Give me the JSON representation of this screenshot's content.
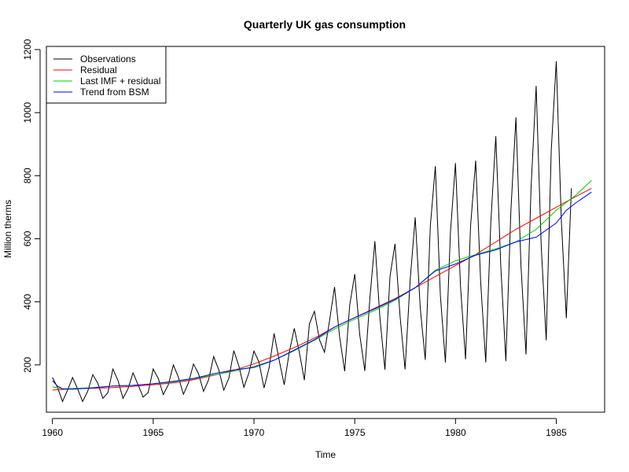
{
  "chart_data": {
    "type": "line",
    "title": "Quarterly UK gas consumption",
    "xlabel": "Time",
    "ylabel": "Million therms",
    "xlim": [
      1959.7,
      1987.4
    ],
    "ylim": [
      50,
      1210
    ],
    "x_ticks": [
      1960,
      1965,
      1970,
      1975,
      1980,
      1985
    ],
    "y_ticks": [
      200,
      400,
      600,
      800,
      1000,
      1200
    ],
    "grid": false,
    "legend_position": "top-left",
    "series": [
      {
        "name": "Observations",
        "color": "#000000",
        "x_start": 1960,
        "x_step": 0.25,
        "values": [
          160,
          129,
          84,
          120,
          160,
          124,
          84,
          116,
          169,
          142,
          94,
          112,
          187,
          151,
          94,
          124,
          175,
          137,
          98,
          112,
          187,
          157,
          106,
          137,
          200,
          161,
          107,
          143,
          203,
          172,
          116,
          153,
          226,
          185,
          120,
          157,
          245,
          197,
          129,
          175,
          244,
          209,
          127,
          190,
          300,
          216,
          137,
          240,
          316,
          240,
          152,
          330,
          370,
          280,
          240,
          340,
          447,
          290,
          180,
          390,
          488,
          295,
          181,
          410,
          592,
          350,
          185,
          480,
          584,
          355,
          186,
          470,
          668,
          380,
          216,
          640,
          830,
          420,
          208,
          620,
          840,
          450,
          218,
          640,
          848,
          460,
          208,
          650,
          925,
          510,
          212,
          690,
          985,
          515,
          233,
          760,
          1085,
          580,
          278,
          880,
          1163,
          660,
          348,
          760
        ]
      },
      {
        "name": "Residual",
        "color": "#ff0000",
        "x": [
          1960,
          1961,
          1962,
          1963,
          1964,
          1965,
          1966,
          1967,
          1968,
          1969,
          1970,
          1971,
          1972,
          1973,
          1974,
          1975,
          1976,
          1977,
          1978,
          1979,
          1980,
          1981,
          1982,
          1983,
          1984,
          1985,
          1986,
          1986.75
        ],
        "values": [
          120,
          124,
          126,
          128,
          132,
          137,
          143,
          153,
          167,
          183,
          203,
          228,
          255,
          285,
          320,
          350,
          380,
          410,
          445,
          480,
          515,
          550,
          590,
          630,
          665,
          700,
          735,
          760
        ]
      },
      {
        "name": "Last IMF + residual",
        "color": "#00cd00",
        "x": [
          1960,
          1960.5,
          1961,
          1962,
          1963,
          1964,
          1965,
          1966,
          1967,
          1968,
          1969,
          1970,
          1971,
          1972,
          1973,
          1974,
          1975,
          1976,
          1977,
          1978,
          1979,
          1980,
          1981,
          1982,
          1983,
          1984,
          1985,
          1986,
          1986.75
        ],
        "values": [
          130,
          124,
          125,
          128,
          133,
          135,
          140,
          146,
          156,
          168,
          180,
          195,
          215,
          245,
          278,
          314,
          345,
          373,
          405,
          445,
          500,
          530,
          550,
          568,
          590,
          630,
          690,
          740,
          785
        ]
      },
      {
        "name": "Trend from BSM",
        "color": "#0000ff",
        "x": [
          1960,
          1960.25,
          1960.5,
          1961,
          1962,
          1963,
          1964,
          1965,
          1966,
          1967,
          1968,
          1969,
          1970,
          1971,
          1972,
          1973,
          1974,
          1975,
          1976,
          1977,
          1978,
          1979,
          1980,
          1981,
          1982,
          1983,
          1984,
          1985,
          1985.5,
          1986,
          1986.75
        ],
        "values": [
          150,
          133,
          124,
          123,
          127,
          133,
          135,
          140,
          148,
          157,
          172,
          184,
          192,
          215,
          247,
          280,
          320,
          350,
          378,
          408,
          445,
          498,
          520,
          548,
          565,
          590,
          605,
          650,
          690,
          715,
          748
        ]
      }
    ]
  }
}
